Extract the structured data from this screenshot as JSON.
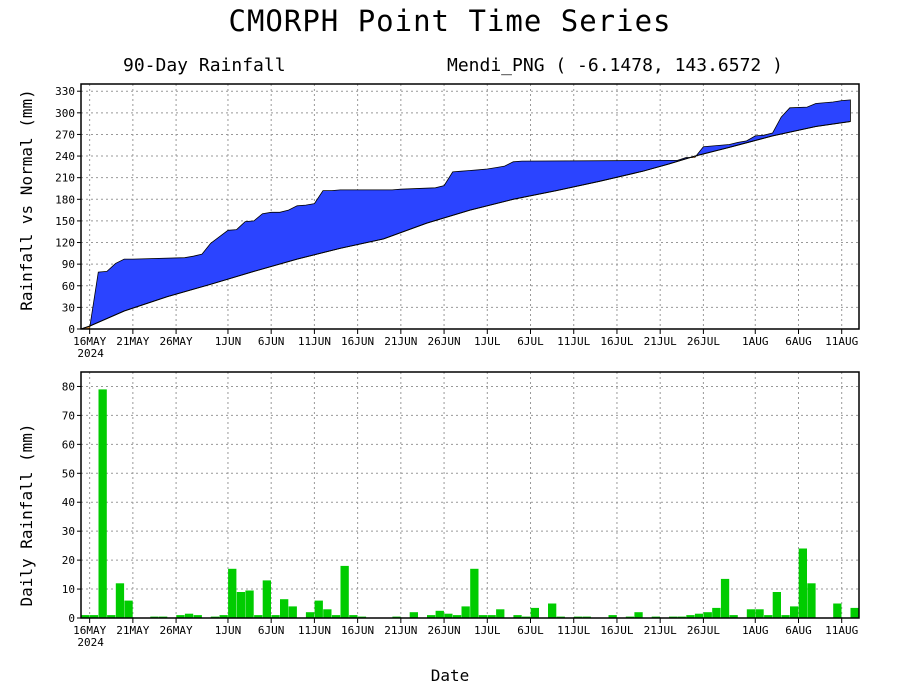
{
  "title": "CMORPH Point Time Series",
  "subtitle_left": "90-Day Rainfall",
  "subtitle_right": "Mendi_PNG ( -6.1478, 143.6572 )",
  "xlabel": "Date",
  "year_label": "2024",
  "colors": {
    "actual_fill": "#2b44ff",
    "deficit_fill": "#f0a040",
    "daily_bar": "#00cc00",
    "grid": "#999999"
  },
  "chart_data": [
    {
      "type": "area",
      "ylabel": "Rainfall vs Normal (mm)",
      "ylim": [
        0,
        340
      ],
      "yticks": [
        0,
        30,
        60,
        90,
        120,
        150,
        180,
        210,
        240,
        270,
        300,
        330
      ],
      "x_range_days": [
        0,
        90
      ],
      "xtick_labels": [
        {
          "day": 1,
          "label": "16MAY"
        },
        {
          "day": 6,
          "label": "21MAY"
        },
        {
          "day": 11,
          "label": "26MAY"
        },
        {
          "day": 17,
          "label": "1JUN"
        },
        {
          "day": 22,
          "label": "6JUN"
        },
        {
          "day": 27,
          "label": "11JUN"
        },
        {
          "day": 32,
          "label": "16JUN"
        },
        {
          "day": 37,
          "label": "21JUN"
        },
        {
          "day": 42,
          "label": "26JUN"
        },
        {
          "day": 47,
          "label": "1JUL"
        },
        {
          "day": 52,
          "label": "6JUL"
        },
        {
          "day": 57,
          "label": "11JUL"
        },
        {
          "day": 62,
          "label": "16JUL"
        },
        {
          "day": 67,
          "label": "21JUL"
        },
        {
          "day": 72,
          "label": "26JUL"
        },
        {
          "day": 78,
          "label": "1AUG"
        },
        {
          "day": 83,
          "label": "6AUG"
        },
        {
          "day": 88,
          "label": "11AUG"
        }
      ],
      "grid": true,
      "series": [
        {
          "name": "",
          "kind": "actual_cumulative",
          "points": [
            [
              0,
              0
            ],
            [
              1,
              1
            ],
            [
              2,
              79
            ],
            [
              3,
              80
            ],
            [
              4,
              91
            ],
            [
              5,
              97
            ],
            [
              6,
              97
            ],
            [
              12,
              99
            ],
            [
              13,
              101
            ],
            [
              14,
              104
            ],
            [
              15,
              119
            ],
            [
              16,
              128
            ],
            [
              17,
              137
            ],
            [
              18,
              138
            ],
            [
              19,
              149
            ],
            [
              20,
              150
            ],
            [
              21,
              160
            ],
            [
              22,
              162
            ],
            [
              23,
              162
            ],
            [
              24,
              165
            ],
            [
              25,
              171
            ],
            [
              26,
              172
            ],
            [
              27,
              174
            ],
            [
              28,
              192
            ],
            [
              29,
              192
            ],
            [
              30,
              193
            ],
            [
              36,
              193
            ],
            [
              37,
              194
            ],
            [
              41,
              196
            ],
            [
              42,
              199
            ],
            [
              43,
              218
            ],
            [
              44,
              219
            ],
            [
              45,
              220
            ],
            [
              46,
              221
            ],
            [
              47,
              222
            ],
            [
              48,
              224
            ],
            [
              49,
              226
            ],
            [
              50,
              232
            ],
            [
              51,
              233
            ],
            [
              68,
              234
            ],
            [
              69,
              234
            ],
            [
              70,
              238
            ],
            [
              71,
              238
            ],
            [
              72,
              253
            ],
            [
              73,
              254
            ],
            [
              75,
              256
            ],
            [
              76,
              259
            ],
            [
              77,
              261
            ],
            [
              78,
              268
            ],
            [
              79,
              269
            ],
            [
              80,
              272
            ],
            [
              81,
              294
            ],
            [
              82,
              307
            ],
            [
              84,
              308
            ],
            [
              85,
              313
            ],
            [
              87,
              315
            ],
            [
              88,
              317
            ],
            [
              89,
              318
            ]
          ]
        },
        {
          "name": "",
          "kind": "normal_cumulative",
          "points": [
            [
              0,
              0
            ],
            [
              1,
              4
            ],
            [
              5,
              25
            ],
            [
              10,
              45
            ],
            [
              15,
              62
            ],
            [
              20,
              80
            ],
            [
              25,
              97
            ],
            [
              30,
              112
            ],
            [
              35,
              125
            ],
            [
              40,
              147
            ],
            [
              45,
              165
            ],
            [
              50,
              180
            ],
            [
              55,
              192
            ],
            [
              60,
              205
            ],
            [
              65,
              219
            ],
            [
              68,
              229
            ],
            [
              71,
              240
            ],
            [
              75,
              252
            ],
            [
              80,
              268
            ],
            [
              85,
              281
            ],
            [
              89,
              288
            ]
          ]
        }
      ]
    },
    {
      "type": "bar",
      "ylabel": "Daily Rainfall (mm)",
      "ylim": [
        0,
        85
      ],
      "yticks": [
        0,
        10,
        20,
        30,
        40,
        50,
        60,
        70,
        80
      ],
      "x_range_days": [
        0,
        90
      ],
      "xtick_labels": [
        {
          "day": 1,
          "label": "16MAY"
        },
        {
          "day": 6,
          "label": "21MAY"
        },
        {
          "day": 11,
          "label": "26MAY"
        },
        {
          "day": 17,
          "label": "1JUN"
        },
        {
          "day": 22,
          "label": "6JUN"
        },
        {
          "day": 27,
          "label": "11JUN"
        },
        {
          "day": 32,
          "label": "16JUN"
        },
        {
          "day": 37,
          "label": "21JUN"
        },
        {
          "day": 42,
          "label": "26JUN"
        },
        {
          "day": 47,
          "label": "1JUL"
        },
        {
          "day": 52,
          "label": "6JUL"
        },
        {
          "day": 57,
          "label": "11JUL"
        },
        {
          "day": 62,
          "label": "16JUL"
        },
        {
          "day": 67,
          "label": "21JUL"
        },
        {
          "day": 72,
          "label": "26JUL"
        },
        {
          "day": 78,
          "label": "1AUG"
        },
        {
          "day": 83,
          "label": "6AUG"
        },
        {
          "day": 88,
          "label": "11AUG"
        }
      ],
      "grid": true,
      "daily_values": [
        1,
        1,
        79,
        1,
        12,
        6,
        0,
        0,
        0.5,
        0.5,
        0,
        1,
        1.5,
        1,
        0,
        0.5,
        1,
        17,
        9,
        9.5,
        1,
        13,
        1,
        6.5,
        4,
        0,
        2,
        6,
        3,
        1,
        18,
        1,
        0.5,
        0,
        0,
        0,
        0.5,
        0,
        2,
        0,
        1,
        2.5,
        1.5,
        1,
        4,
        17,
        1,
        1,
        3,
        0,
        1,
        0.5,
        3.5,
        0,
        5,
        0.5,
        0,
        0.5,
        0.5,
        0,
        0,
        1,
        0,
        0.5,
        2,
        0,
        0.5,
        0,
        0.5,
        0.5,
        1,
        1.5,
        2,
        3.5,
        13.5,
        1,
        0,
        3,
        3,
        1,
        9,
        1,
        4,
        24,
        12,
        0,
        0,
        5,
        0,
        3.5
      ]
    }
  ]
}
